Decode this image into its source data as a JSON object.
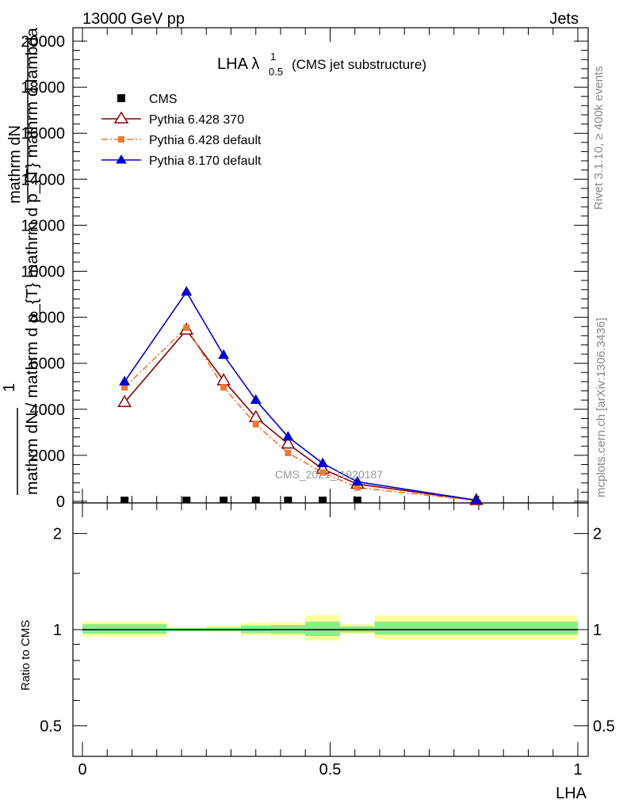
{
  "header": {
    "left": "13000 GeV pp",
    "right": "Jets"
  },
  "title": {
    "main": "LHA λ",
    "sup": "1",
    "sub": "0.5",
    "suffix": "(CMS jet substructure)"
  },
  "side_labels": {
    "rivet": "Rivet 3.1.10, ≥ 400k events",
    "mcplots": "mcplots.cern.ch [arXiv:1306.3436]"
  },
  "watermark": "CMS_2021_I1920187",
  "ylabel_main": {
    "num_top": "mathrm dN",
    "one": "1",
    "den": "mathrm dN / mathrm d p_{T} mathrm d p_{T} mathrm d lambda"
  },
  "ylabel_ratio": "Ratio to CMS",
  "xlabel": "LHA",
  "legend": [
    {
      "name": "CMS",
      "color": "#000000",
      "marker": "square"
    },
    {
      "name": "Pythia 6.428 370",
      "color": "#8b0000",
      "marker": "open-triangle"
    },
    {
      "name": "Pythia 6.428 default",
      "color": "#ee7733",
      "marker": "small-square"
    },
    {
      "name": "Pythia 8.170 default",
      "color": "#0000cc",
      "marker": "triangle"
    }
  ],
  "chart_data": [
    {
      "type": "line",
      "panel": "main",
      "xlim": [
        0,
        1
      ],
      "ylim": [
        0,
        20000
      ],
      "y_ticks": [
        0,
        2000,
        4000,
        6000,
        8000,
        10000,
        12000,
        14000,
        16000,
        18000,
        20000
      ],
      "x_ticks": [
        0,
        0.5,
        1
      ],
      "series": [
        {
          "name": "CMS",
          "color": "#000000",
          "x": [
            0.085,
            0.21,
            0.285,
            0.35,
            0.415,
            0.485,
            0.555
          ],
          "y": [
            30,
            30,
            30,
            30,
            30,
            30,
            30
          ]
        },
        {
          "name": "Pythia 6.428 370",
          "color": "#8b0000",
          "x": [
            0.085,
            0.21,
            0.285,
            0.35,
            0.415,
            0.485,
            0.555,
            0.795
          ],
          "y": [
            4300,
            7450,
            5250,
            3650,
            2500,
            1400,
            750,
            40
          ]
        },
        {
          "name": "Pythia 6.428 default",
          "color": "#ee7733",
          "x": [
            0.085,
            0.21,
            0.285,
            0.35,
            0.415,
            0.485,
            0.555,
            0.795
          ],
          "y": [
            4950,
            7550,
            4950,
            3350,
            2100,
            1250,
            600,
            30
          ]
        },
        {
          "name": "Pythia 8.170 default",
          "color": "#0000cc",
          "x": [
            0.085,
            0.21,
            0.285,
            0.35,
            0.415,
            0.485,
            0.555,
            0.795
          ],
          "y": [
            5200,
            9100,
            6350,
            4400,
            2800,
            1650,
            850,
            50
          ]
        }
      ]
    },
    {
      "type": "area",
      "panel": "ratio",
      "xlim": [
        0,
        1
      ],
      "ylim": [
        0.4,
        2.3
      ],
      "y_scale": "log",
      "y_ticks": [
        0.5,
        1,
        2
      ],
      "x_ticks": [
        0,
        0.5,
        1
      ],
      "reference": 1,
      "bands": [
        {
          "x0": 0.0,
          "x1": 0.17,
          "yellow": [
            0.95,
            1.06
          ],
          "green": [
            0.97,
            1.04
          ]
        },
        {
          "x0": 0.17,
          "x1": 0.25,
          "yellow": [
            0.985,
            1.02
          ],
          "green": [
            0.99,
            1.01
          ]
        },
        {
          "x0": 0.25,
          "x1": 0.32,
          "yellow": [
            0.98,
            1.03
          ],
          "green": [
            0.99,
            1.015
          ]
        },
        {
          "x0": 0.32,
          "x1": 0.38,
          "yellow": [
            0.96,
            1.05
          ],
          "green": [
            0.975,
            1.03
          ]
        },
        {
          "x0": 0.38,
          "x1": 0.45,
          "yellow": [
            0.955,
            1.055
          ],
          "green": [
            0.97,
            1.035
          ]
        },
        {
          "x0": 0.45,
          "x1": 0.52,
          "yellow": [
            0.925,
            1.11
          ],
          "green": [
            0.955,
            1.06
          ]
        },
        {
          "x0": 0.52,
          "x1": 0.59,
          "yellow": [
            0.97,
            1.04
          ],
          "green": [
            0.98,
            1.025
          ]
        },
        {
          "x0": 0.59,
          "x1": 1.0,
          "yellow": [
            0.935,
            1.105
          ],
          "green": [
            0.965,
            1.06
          ]
        }
      ],
      "colors": {
        "yellow": "#ffff99",
        "green": "#88ee88"
      }
    }
  ]
}
